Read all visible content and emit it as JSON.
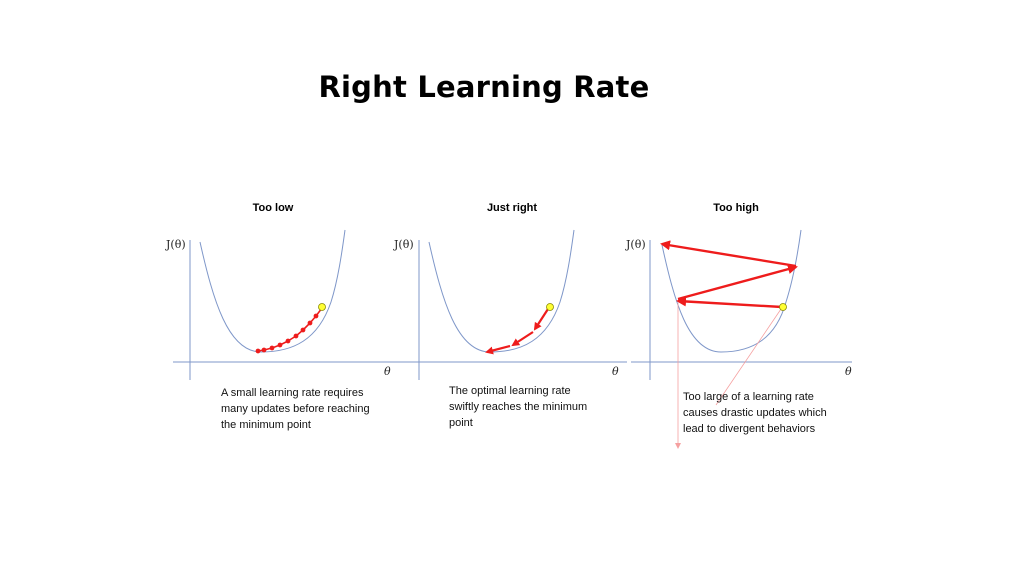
{
  "title": "Right Learning Rate",
  "y_axis_label": "J(θ)",
  "x_axis_label": "θ",
  "colors": {
    "curve": "#7f97c9",
    "axis": "#7f97c9",
    "arrow": "#ee1c1c",
    "point": "#ffff33"
  },
  "panels": [
    {
      "title": "Too low",
      "caption": "A small learning rate requires many updates before reaching the minimum point"
    },
    {
      "title": "Just right",
      "caption": "The optimal learning rate swiftly reaches the minimum point"
    },
    {
      "title": "Too high",
      "caption": "Too large of a learning rate causes drastic updates which lead to divergent behaviors"
    }
  ]
}
